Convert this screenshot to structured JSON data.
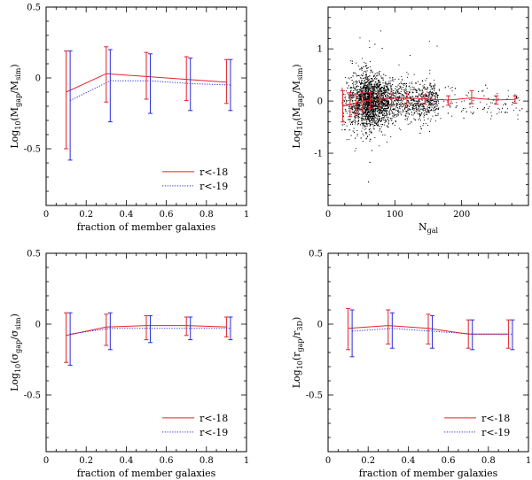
{
  "chart_data": [
    {
      "id": "p1",
      "type": "line",
      "xlabel": "fraction of member galaxies",
      "ylabel": {
        "base": "Log",
        "base_sub": "10",
        "open": "(M",
        "num_sub": "gap",
        "mid": "/M",
        "den_sub": "sim",
        "close": ")"
      },
      "xlim": [
        0,
        1
      ],
      "ylim": [
        -0.9,
        0.5
      ],
      "xticks": [
        0,
        0.2,
        0.4,
        0.6,
        0.8,
        1
      ],
      "xtick_labels": [
        "0",
        "0.2",
        "0.4",
        "0.6",
        "0.8",
        "1"
      ],
      "yticks": [
        -0.5,
        0,
        0.5
      ],
      "ytick_labels": [
        "-0.5",
        "0",
        "0.5"
      ],
      "legend": {
        "position": "bottom-right"
      },
      "series": [
        {
          "name": "r<-18",
          "color": "#e8222a",
          "style": "solid",
          "x": [
            0.1,
            0.3,
            0.5,
            0.7,
            0.9
          ],
          "y": [
            -0.1,
            0.03,
            0.01,
            -0.01,
            -0.03
          ],
          "err_lo": [
            -0.5,
            -0.17,
            -0.15,
            -0.16,
            -0.18
          ],
          "err_hi": [
            0.19,
            0.22,
            0.18,
            0.15,
            0.13
          ]
        },
        {
          "name": "r<-19",
          "color": "#2a2ae0",
          "style": "dotted",
          "x": [
            0.12,
            0.32,
            0.52,
            0.72,
            0.92
          ],
          "y": [
            -0.16,
            -0.02,
            -0.02,
            -0.04,
            -0.05
          ],
          "err_lo": [
            -0.58,
            -0.31,
            -0.25,
            -0.23,
            -0.23
          ],
          "err_hi": [
            0.19,
            0.2,
            0.17,
            0.14,
            0.13
          ]
        }
      ]
    },
    {
      "id": "p2",
      "type": "scatter",
      "xlabel": {
        "base": "N",
        "sub": "gal"
      },
      "ylabel": {
        "base": "Log",
        "base_sub": "10",
        "open": "(M",
        "num_sub": "gap",
        "mid": "/M",
        "den_sub": "sim",
        "close": ")"
      },
      "xlim": [
        0,
        300
      ],
      "ylim": [
        -2,
        1.8
      ],
      "xticks": [
        0,
        100,
        200
      ],
      "xtick_labels": [
        "0",
        "100",
        "200"
      ],
      "yticks": [
        -1,
        0,
        1
      ],
      "ytick_labels": [
        "-1",
        "0",
        "1"
      ],
      "scatter_color": "#000000",
      "scatter_desc": {
        "count": 3500,
        "x_min": 20,
        "x_peak": 55,
        "x_max": 290,
        "y_center": 0.0,
        "y_spread": 0.25
      },
      "series": [
        {
          "color": "#e8222a",
          "style": "solid",
          "x": [
            22,
            33,
            42,
            52,
            63,
            77,
            95,
            118,
            145,
            180,
            215,
            252,
            280
          ],
          "y": [
            -0.1,
            -0.06,
            -0.04,
            0.0,
            0.02,
            0.03,
            0.05,
            0.06,
            0.04,
            0.02,
            0.06,
            0.02,
            0.03
          ],
          "err_lo": [
            -0.4,
            -0.3,
            -0.25,
            -0.2,
            -0.14,
            -0.12,
            -0.1,
            -0.08,
            -0.06,
            -0.08,
            -0.05,
            -0.06,
            -0.04
          ],
          "err_hi": [
            0.2,
            0.16,
            0.14,
            0.16,
            0.16,
            0.15,
            0.14,
            0.14,
            0.12,
            0.1,
            0.2,
            0.1,
            0.1
          ]
        }
      ]
    },
    {
      "id": "p3",
      "type": "line",
      "xlabel": "fraction of member galaxies",
      "ylabel": {
        "base": "Log",
        "base_sub": "10",
        "open": "(σ",
        "num_sub": "gap",
        "mid": "/σ",
        "den_sub": "sim",
        "close": ")"
      },
      "xlim": [
        0,
        1
      ],
      "ylim": [
        -0.9,
        0.5
      ],
      "xticks": [
        0,
        0.2,
        0.4,
        0.6,
        0.8,
        1
      ],
      "xtick_labels": [
        "0",
        "0.2",
        "0.4",
        "0.6",
        "0.8",
        "1"
      ],
      "yticks": [
        -0.5,
        0,
        0.5
      ],
      "ytick_labels": [
        "-0.5",
        "0",
        "0.5"
      ],
      "legend": {
        "position": "bottom-right"
      },
      "series": [
        {
          "name": "r<-18",
          "color": "#e8222a",
          "style": "solid",
          "x": [
            0.1,
            0.3,
            0.5,
            0.7,
            0.9
          ],
          "y": [
            -0.08,
            -0.02,
            -0.01,
            -0.01,
            -0.02
          ],
          "err_lo": [
            -0.27,
            -0.15,
            -0.11,
            -0.08,
            -0.09
          ],
          "err_hi": [
            0.08,
            0.07,
            0.06,
            0.05,
            0.05
          ]
        },
        {
          "name": "r<-19",
          "color": "#2a2ae0",
          "style": "dotted",
          "x": [
            0.12,
            0.32,
            0.52,
            0.72,
            0.92
          ],
          "y": [
            -0.07,
            -0.03,
            -0.03,
            -0.03,
            -0.03
          ],
          "err_lo": [
            -0.29,
            -0.18,
            -0.13,
            -0.11,
            -0.11
          ],
          "err_hi": [
            0.08,
            0.08,
            0.06,
            0.05,
            0.05
          ]
        }
      ]
    },
    {
      "id": "p4",
      "type": "line",
      "xlabel": "fraction of member galaxies",
      "ylabel": {
        "base": "Log",
        "base_sub": "10",
        "open": "(r",
        "num_sub": "gap",
        "mid": "/r",
        "den_sub": "3D",
        "close": ")"
      },
      "xlim": [
        0,
        1
      ],
      "ylim": [
        -0.9,
        0.5
      ],
      "xticks": [
        0,
        0.2,
        0.4,
        0.6,
        0.8,
        1
      ],
      "xtick_labels": [
        "0",
        "0.2",
        "0.4",
        "0.6",
        "0.8",
        "1"
      ],
      "yticks": [
        -0.5,
        0,
        0.5
      ],
      "ytick_labels": [
        "-0.5",
        "0",
        "0.5"
      ],
      "legend": {
        "position": "bottom-right"
      },
      "series": [
        {
          "name": "r<-18",
          "color": "#e8222a",
          "style": "solid",
          "x": [
            0.1,
            0.3,
            0.5,
            0.7,
            0.9
          ],
          "y": [
            -0.03,
            -0.01,
            -0.03,
            -0.07,
            -0.07
          ],
          "err_lo": [
            -0.18,
            -0.14,
            -0.14,
            -0.17,
            -0.17
          ],
          "err_hi": [
            0.11,
            0.1,
            0.07,
            0.03,
            0.03
          ]
        },
        {
          "name": "r<-19",
          "color": "#2a2ae0",
          "style": "dotted",
          "x": [
            0.12,
            0.32,
            0.52,
            0.72,
            0.92
          ],
          "y": [
            -0.05,
            -0.03,
            -0.05,
            -0.07,
            -0.07
          ],
          "err_lo": [
            -0.23,
            -0.17,
            -0.17,
            -0.18,
            -0.18
          ],
          "err_hi": [
            0.1,
            0.08,
            0.06,
            0.03,
            0.03
          ]
        }
      ]
    }
  ]
}
